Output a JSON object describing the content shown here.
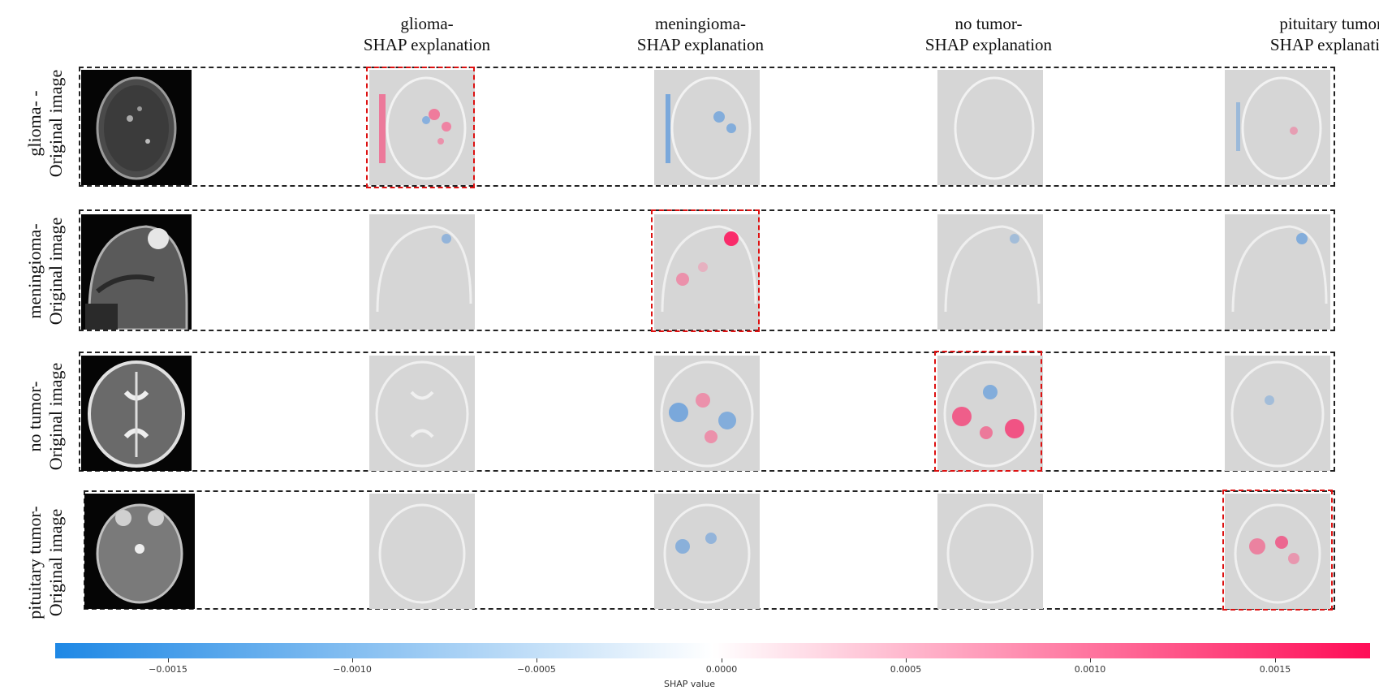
{
  "columns": [
    {
      "line1": "glioma-",
      "line2": "SHAP explanation"
    },
    {
      "line1": "meningioma-",
      "line2": "SHAP explanation"
    },
    {
      "line1": "no tumor-",
      "line2": "SHAP explanation"
    },
    {
      "line1": "pituitary tumor-",
      "line2": "SHAP explanation"
    }
  ],
  "rows": [
    {
      "line1": "glioma- -",
      "line2": "Original image",
      "highlight_column": 0
    },
    {
      "line1": "meningioma-",
      "line2": "Original image",
      "highlight_column": 1
    },
    {
      "line1": "no tumor-",
      "line2": "Original image",
      "highlight_column": 2
    },
    {
      "line1": "pituitary tumor-",
      "line2": "Original image",
      "highlight_column": 3
    }
  ],
  "colorbar": {
    "title": "SHAP value",
    "ticks": [
      "−0.0015",
      "−0.0010",
      "−0.0005",
      "0.0000",
      "0.0005",
      "0.0010",
      "0.0015"
    ],
    "colors": {
      "negative": "#1e88e5",
      "zero": "#ffffff",
      "positive": "#ff0d57"
    }
  },
  "colors": {
    "frame": "#222222",
    "highlight": "#dd1111"
  }
}
